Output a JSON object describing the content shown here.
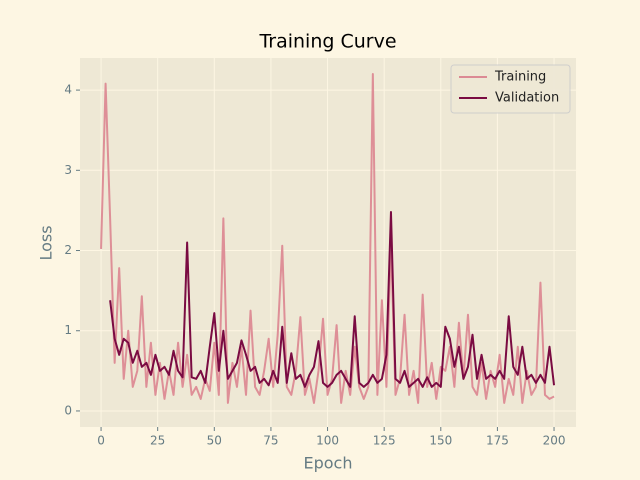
{
  "chart_data": {
    "type": "line",
    "title": "Training Curve",
    "x_label": "Epoch",
    "y_label": "Loss",
    "x": [
      0,
      2,
      4,
      6,
      8,
      10,
      12,
      14,
      16,
      18,
      20,
      22,
      24,
      26,
      28,
      30,
      32,
      34,
      36,
      38,
      40,
      42,
      44,
      46,
      48,
      50,
      52,
      54,
      56,
      58,
      60,
      62,
      64,
      66,
      68,
      70,
      72,
      74,
      76,
      78,
      80,
      82,
      84,
      86,
      88,
      90,
      92,
      94,
      96,
      98,
      100,
      102,
      104,
      106,
      108,
      110,
      112,
      114,
      116,
      118,
      120,
      122,
      124,
      126,
      128,
      130,
      132,
      134,
      136,
      138,
      140,
      142,
      144,
      146,
      148,
      150,
      152,
      154,
      156,
      158,
      160,
      162,
      164,
      166,
      168,
      170,
      172,
      174,
      176,
      178,
      180,
      182,
      184,
      186,
      188,
      190,
      192,
      194,
      196,
      198,
      200
    ],
    "series": [
      {
        "name": "Training",
        "color": "#dc8a94",
        "values": [
          2.02,
          4.08,
          2.4,
          0.6,
          1.78,
          0.4,
          1.0,
          0.3,
          0.5,
          1.43,
          0.3,
          0.85,
          0.2,
          0.6,
          0.15,
          0.5,
          0.2,
          0.85,
          0.3,
          0.7,
          0.2,
          0.3,
          0.15,
          0.4,
          0.25,
          0.85,
          0.2,
          2.4,
          0.1,
          0.6,
          0.3,
          0.8,
          0.2,
          1.25,
          0.3,
          0.2,
          0.5,
          0.9,
          0.3,
          0.95,
          2.06,
          0.3,
          0.2,
          0.5,
          1.17,
          0.2,
          0.4,
          0.1,
          0.5,
          1.15,
          0.2,
          0.4,
          1.07,
          0.1,
          0.5,
          0.2,
          0.8,
          0.3,
          0.15,
          0.3,
          4.2,
          0.2,
          1.38,
          0.3,
          2.1,
          0.2,
          0.4,
          1.2,
          0.2,
          0.5,
          0.1,
          1.45,
          0.3,
          0.6,
          0.15,
          0.55,
          0.5,
          0.8,
          0.3,
          1.1,
          0.4,
          1.2,
          0.3,
          0.2,
          0.6,
          0.15,
          0.5,
          0.3,
          0.7,
          0.1,
          0.4,
          0.2,
          0.8,
          0.1,
          0.5,
          0.2,
          0.3,
          1.6,
          0.2,
          0.15,
          0.18
        ]
      },
      {
        "name": "Validation",
        "color": "#7a0b42",
        "values": [
          null,
          null,
          1.38,
          0.9,
          0.7,
          0.9,
          0.85,
          0.6,
          0.75,
          0.55,
          0.6,
          0.45,
          0.7,
          0.5,
          0.55,
          0.45,
          0.75,
          0.5,
          0.42,
          2.1,
          0.42,
          0.4,
          0.5,
          0.35,
          0.8,
          1.22,
          0.5,
          1.0,
          0.4,
          0.5,
          0.6,
          0.88,
          0.7,
          0.5,
          0.55,
          0.35,
          0.4,
          0.32,
          0.5,
          0.35,
          1.05,
          0.35,
          0.72,
          0.4,
          0.45,
          0.3,
          0.45,
          0.55,
          0.87,
          0.35,
          0.3,
          0.35,
          0.45,
          0.5,
          0.4,
          0.3,
          1.18,
          0.35,
          0.3,
          0.35,
          0.45,
          0.35,
          0.4,
          0.7,
          2.48,
          0.4,
          0.35,
          0.5,
          0.3,
          0.35,
          0.4,
          0.3,
          0.42,
          0.3,
          0.35,
          0.3,
          1.05,
          0.9,
          0.55,
          0.8,
          0.4,
          0.55,
          0.95,
          0.4,
          0.7,
          0.4,
          0.45,
          0.4,
          0.5,
          0.4,
          1.18,
          0.55,
          0.45,
          0.8,
          0.4,
          0.45,
          0.35,
          0.45,
          0.35,
          0.8,
          0.32
        ]
      }
    ],
    "xlim": [
      -9.3,
      209.7
    ],
    "ylim": [
      -0.2,
      4.4
    ],
    "xticks": [
      0,
      25,
      50,
      75,
      100,
      125,
      150,
      175,
      200
    ],
    "yticks": [
      0,
      1,
      2,
      3,
      4
    ],
    "grid": true,
    "legend": "upper right"
  }
}
